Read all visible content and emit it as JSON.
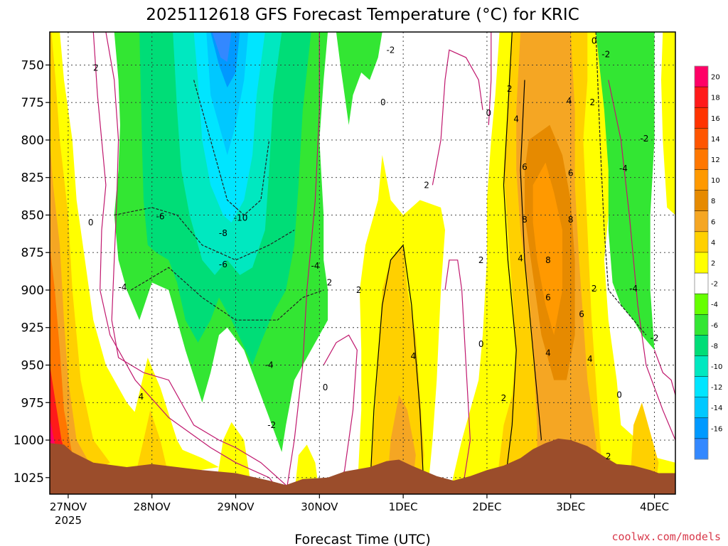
{
  "chart_data": {
    "type": "heatmap",
    "title": "2025112618 GFS Forecast Temperature (°C) for KRIC",
    "xlabel": "Forecast Time (UTC)",
    "ylabel": "",
    "credit": "coolwx.com/models",
    "x_ticks": [
      "27NOV",
      "28NOV",
      "29NOV",
      "30NOV",
      "1DEC",
      "2DEC",
      "3DEC",
      "4DEC"
    ],
    "x_year_label": "2025",
    "x_tick_day_offsets": [
      0,
      1,
      2,
      3,
      4,
      5,
      6,
      7
    ],
    "y_ticks": [
      750,
      775,
      800,
      825,
      850,
      875,
      900,
      925,
      950,
      975,
      1000,
      1025
    ],
    "y_axis": "pressure (hPa), inverted",
    "x_range_days": [
      -0.22,
      7.25
    ],
    "y_range_hpa": [
      728,
      1036
    ],
    "grid": true,
    "colorbar_ticks": [
      20,
      18,
      16,
      14,
      12,
      10,
      8,
      6,
      4,
      2,
      -2,
      -4,
      -6,
      -8,
      -10,
      -12,
      -14,
      -16
    ],
    "colorbar_colors": [
      "#ff0066",
      "#ff1a1a",
      "#ff3300",
      "#ff5500",
      "#ff7700",
      "#ff9900",
      "#e68a00",
      "#f5a623",
      "#ffd000",
      "#ffff00",
      "#ffffff",
      "#66ff00",
      "#33e633",
      "#00dd77",
      "#00e8c0",
      "#00e5ff",
      "#00c8ff",
      "#0099ff",
      "#3388ff"
    ],
    "terrain_color": "#9b4d2b",
    "contour_labels": [
      {
        "text": "2",
        "x": 0.33,
        "y": 752
      },
      {
        "text": "0",
        "x": 0.27,
        "y": 855
      },
      {
        "text": "-6",
        "x": 1.1,
        "y": 851
      },
      {
        "text": "-4",
        "x": 0.65,
        "y": 898
      },
      {
        "text": "4",
        "x": 0.87,
        "y": 971
      },
      {
        "text": "-10",
        "x": 2.06,
        "y": 852
      },
      {
        "text": "-8",
        "x": 1.85,
        "y": 862
      },
      {
        "text": "-6",
        "x": 1.85,
        "y": 883
      },
      {
        "text": "-4",
        "x": 2.4,
        "y": 950
      },
      {
        "text": "-2",
        "x": 2.43,
        "y": 990
      },
      {
        "text": "-4",
        "x": 2.95,
        "y": 884
      },
      {
        "text": "2",
        "x": 3.12,
        "y": 895
      },
      {
        "text": "-2",
        "x": 3.85,
        "y": 740
      },
      {
        "text": "0",
        "x": 3.76,
        "y": 775
      },
      {
        "text": "0",
        "x": 3.07,
        "y": 965
      },
      {
        "text": "2",
        "x": 3.47,
        "y": 900
      },
      {
        "text": "2",
        "x": 4.28,
        "y": 830
      },
      {
        "text": "4",
        "x": 4.12,
        "y": 944
      },
      {
        "text": "2",
        "x": 4.93,
        "y": 880
      },
      {
        "text": "0",
        "x": 4.93,
        "y": 936
      },
      {
        "text": "2",
        "x": 5.2,
        "y": 972
      },
      {
        "text": "0",
        "x": 5.02,
        "y": 782
      },
      {
        "text": "2",
        "x": 5.27,
        "y": 766
      },
      {
        "text": "4",
        "x": 5.35,
        "y": 786
      },
      {
        "text": "6",
        "x": 5.45,
        "y": 818
      },
      {
        "text": "8",
        "x": 5.45,
        "y": 853
      },
      {
        "text": "4",
        "x": 5.4,
        "y": 879
      },
      {
        "text": "8",
        "x": 5.73,
        "y": 880
      },
      {
        "text": "6",
        "x": 5.73,
        "y": 905
      },
      {
        "text": "4",
        "x": 5.73,
        "y": 942
      },
      {
        "text": "8",
        "x": 6.0,
        "y": 853
      },
      {
        "text": "6",
        "x": 6.0,
        "y": 822
      },
      {
        "text": "4",
        "x": 5.98,
        "y": 774
      },
      {
        "text": "2",
        "x": 6.26,
        "y": 775
      },
      {
        "text": "0",
        "x": 6.28,
        "y": 734
      },
      {
        "text": "-2",
        "x": 6.42,
        "y": 743
      },
      {
        "text": "6",
        "x": 6.13,
        "y": 916
      },
      {
        "text": "4",
        "x": 6.23,
        "y": 946
      },
      {
        "text": "2",
        "x": 6.28,
        "y": 899
      },
      {
        "text": "-4",
        "x": 6.63,
        "y": 819
      },
      {
        "text": "-2",
        "x": 6.88,
        "y": 799
      },
      {
        "text": "-4",
        "x": 6.75,
        "y": 899
      },
      {
        "text": "-2",
        "x": 7.0,
        "y": 932
      },
      {
        "text": "0",
        "x": 6.58,
        "y": 970
      },
      {
        "text": "2",
        "x": 6.45,
        "y": 1011
      }
    ]
  }
}
